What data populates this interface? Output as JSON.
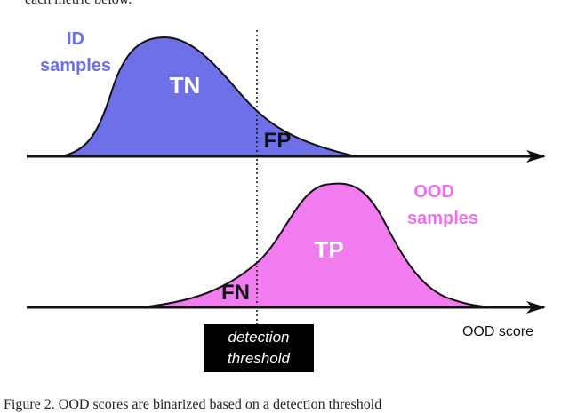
{
  "caption_top": "each metric below.",
  "caption_bottom": "Figure 2. OOD scores are binarized based on a detection threshold",
  "id_label_line1": "ID",
  "id_label_line2": "samples",
  "ood_label_line1": "OOD",
  "ood_label_line2": "samples",
  "region_tn": "TN",
  "region_fp": "FP",
  "region_tp": "TP",
  "region_fn": "FN",
  "axis_label": "OOD score",
  "threshold_line1": "detection",
  "threshold_line2": "threshold",
  "colors": {
    "id_fill": "#6e70e8",
    "ood_fill": "#f07cf0",
    "id_text": "#6e70e8",
    "ood_text": "#ef6ef0"
  }
}
